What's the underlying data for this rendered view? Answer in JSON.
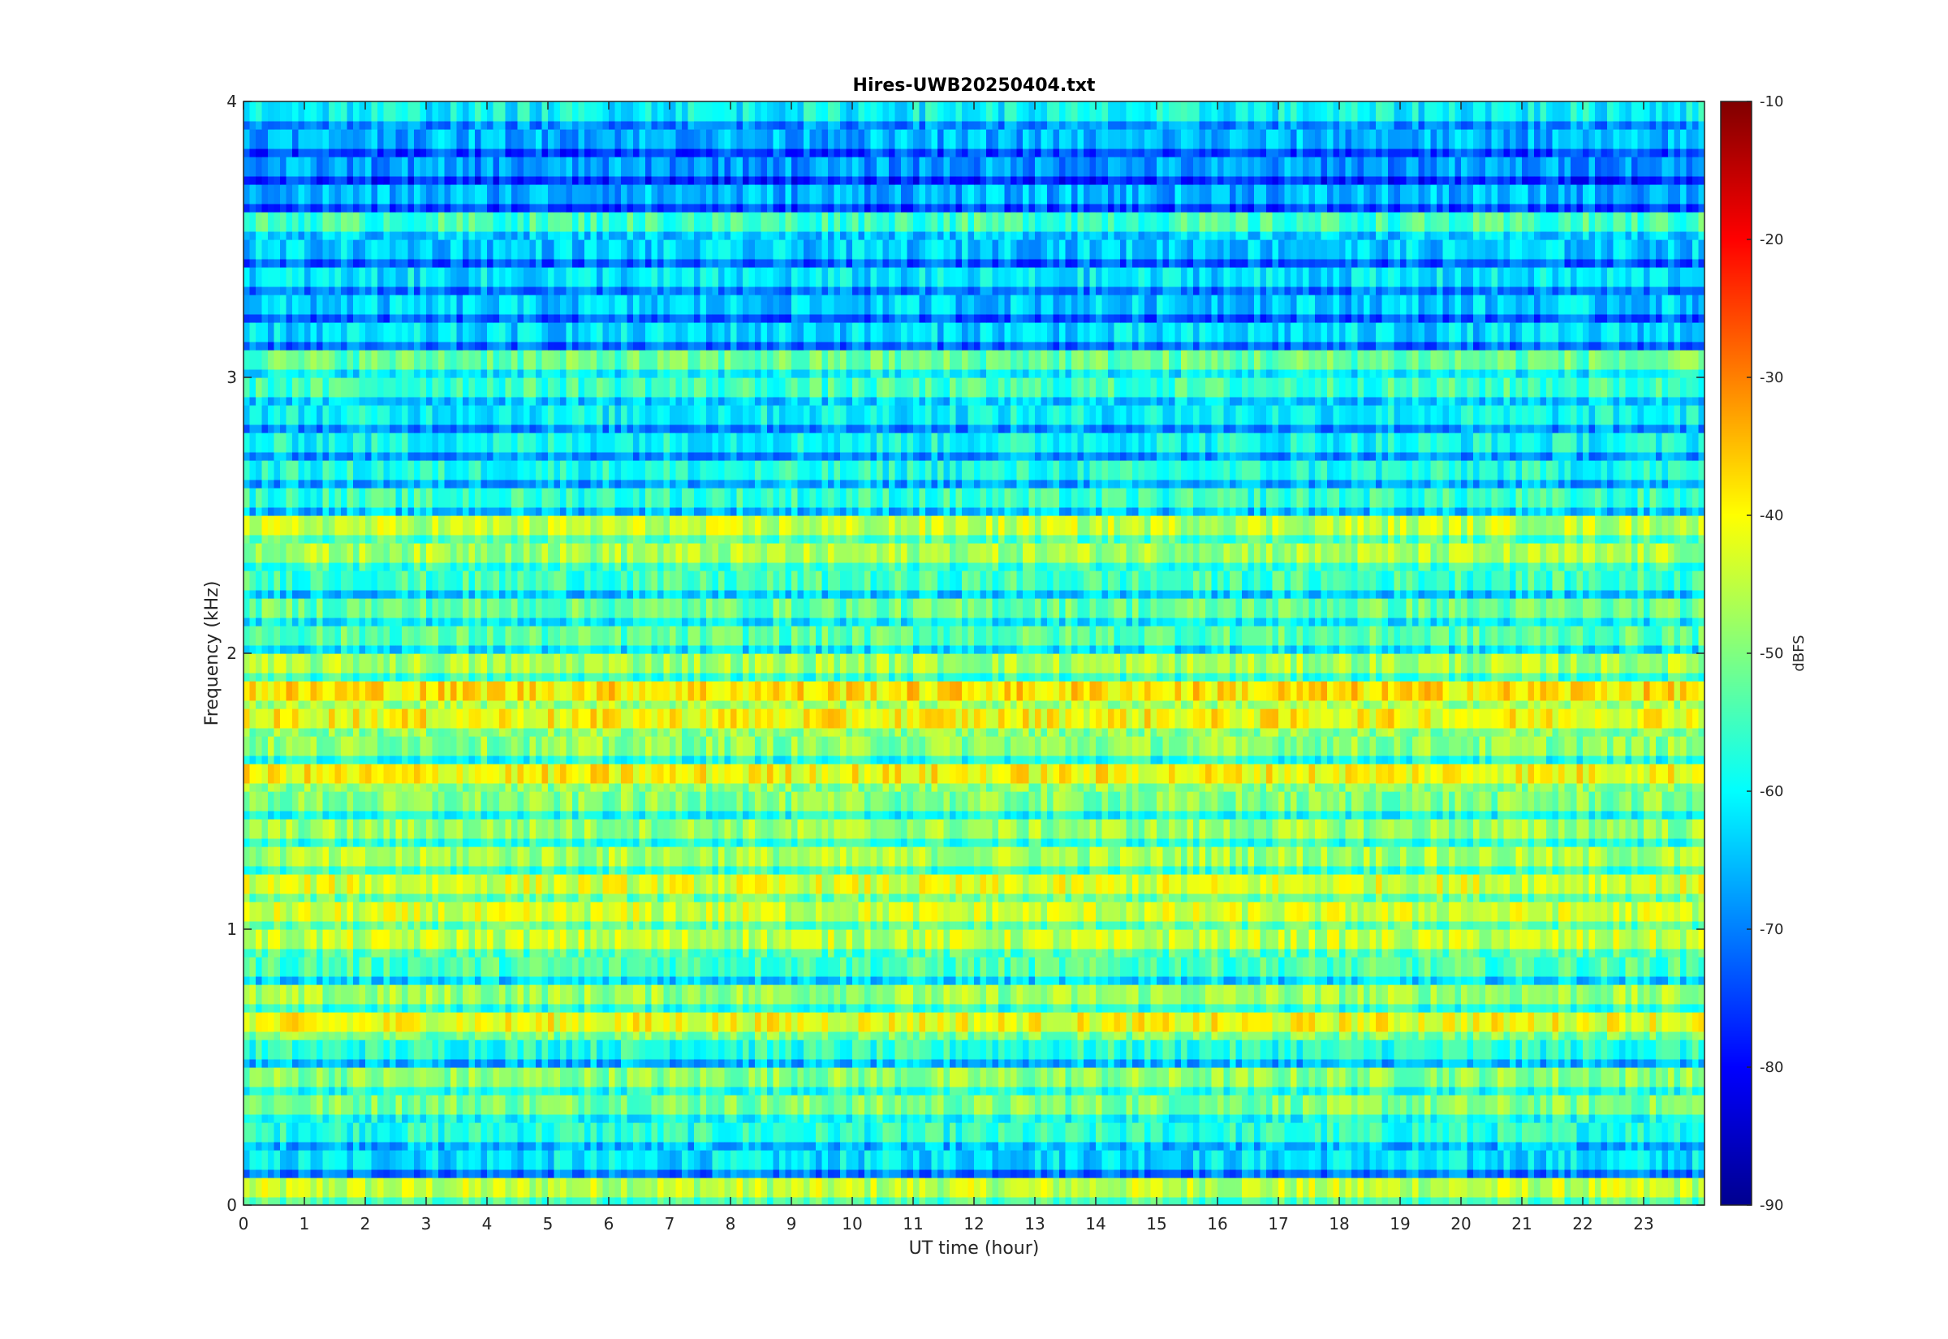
{
  "chart_data": {
    "type": "heatmap",
    "title": "Hires-UWB20250404.txt",
    "xlabel": "UT time (hour)",
    "ylabel": "Frequency (kHz)",
    "colorbar_label": "dBFS",
    "xlim": [
      0,
      24
    ],
    "ylim": [
      0,
      4
    ],
    "clim": [
      -90,
      -10
    ],
    "x_ticks": [
      "0",
      "1",
      "2",
      "3",
      "4",
      "5",
      "6",
      "7",
      "8",
      "9",
      "10",
      "11",
      "12",
      "13",
      "14",
      "15",
      "16",
      "17",
      "18",
      "19",
      "20",
      "21",
      "22",
      "23"
    ],
    "y_ticks": [
      "0",
      "1",
      "2",
      "3",
      "4"
    ],
    "colorbar_ticks": [
      "-10",
      "-20",
      "-30",
      "-40",
      "-50",
      "-60",
      "-70",
      "-80",
      "-90"
    ],
    "colormap": "jet",
    "grid": false,
    "band_freqs_khz": [
      0.05,
      0.15,
      0.25,
      0.35,
      0.45,
      0.55,
      0.65,
      0.75,
      0.85,
      0.95,
      1.05,
      1.15,
      1.25,
      1.35,
      1.45,
      1.55,
      1.65,
      1.75,
      1.85,
      1.95,
      2.05,
      2.15,
      2.25,
      2.35,
      2.45,
      2.55,
      2.65,
      2.75,
      2.85,
      2.95,
      3.05,
      3.15,
      3.25,
      3.35,
      3.45,
      3.55,
      3.65,
      3.75,
      3.85,
      3.95
    ],
    "band_levels_dbfs": [
      -45,
      -62,
      -57,
      -50,
      -49,
      -57,
      -41,
      -48,
      -54,
      -45,
      -44,
      -43,
      -47,
      -48,
      -50,
      -40,
      -49,
      -40,
      -38,
      -47,
      -53,
      -52,
      -55,
      -47,
      -45,
      -56,
      -58,
      -59,
      -60,
      -55,
      -52,
      -63,
      -64,
      -62,
      -64,
      -55,
      -66,
      -68,
      -66,
      -60
    ]
  }
}
